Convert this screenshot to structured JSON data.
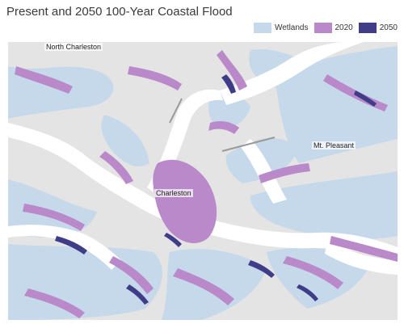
{
  "title": "Present and 2050 100-Year Coastal Flood",
  "legend": [
    {
      "label": "Wetlands",
      "color": "#c5d9ea"
    },
    {
      "label": "2020",
      "color": "#b989c9"
    },
    {
      "label": "2050",
      "color": "#403d88"
    }
  ],
  "places": {
    "north_charleston": "North Charleston",
    "charleston": "Charleston",
    "mt_pleasant": "Mt. Pleasant"
  },
  "colors": {
    "water": "#ffffff",
    "land": "#e4e4e4",
    "wetlands": "#c5d9ea",
    "flood_2020": "#b989c9",
    "flood_2050": "#403d88"
  }
}
